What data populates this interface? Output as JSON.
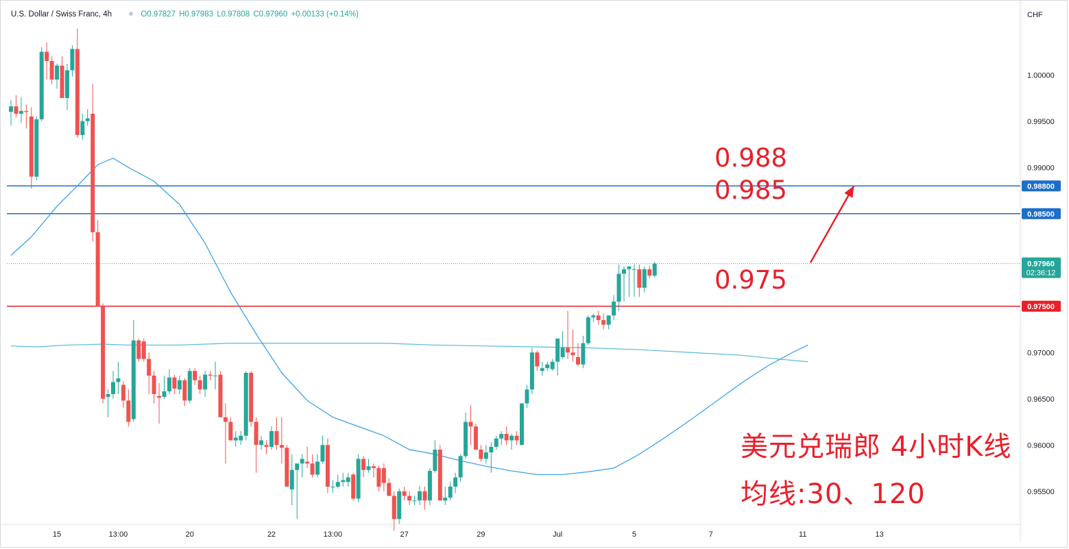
{
  "legend": {
    "symbol": "U.S. Dollar / Swiss Franc, 4h",
    "open": "O0.97827",
    "high": "H0.97983",
    "low": "L0.97808",
    "close": "C0.97960",
    "change": "+0.00133 (+0.14%)"
  },
  "currency": "CHF",
  "annotations": {
    "level_988": "0.988",
    "level_985": "0.985",
    "level_975": "0.975",
    "title_note": "美元兑瑞郎 4小时K线",
    "ma_note": "均线:30、120"
  },
  "colors": {
    "up": "#26a69a",
    "down": "#ef5350",
    "resistance": "#1e6ec8",
    "support": "#e8202a",
    "ma30": "#2e9be8",
    "ma120": "#56b8d6",
    "arrow": "#e8202a"
  },
  "chart_data": {
    "type": "candlestick",
    "title": "U.S. Dollar / Swiss Franc, 4h",
    "ylabel": "CHF",
    "ylim": [
      0.9515,
      1.0055
    ],
    "y_ticks": [
      0.955,
      0.96,
      0.965,
      0.97,
      0.975,
      0.98,
      0.985,
      0.99,
      0.995,
      1.0
    ],
    "y_tick_labels": [
      "0.95500",
      "0.96000",
      "0.96500",
      "0.97000",
      "0.97500",
      "0.98000",
      "0.98500",
      "0.99000",
      "0.99500",
      "1.00000"
    ],
    "x_range": [
      0,
      183
    ],
    "x_ticks": [
      {
        "x": 9,
        "label": "15"
      },
      {
        "x": 21,
        "label": "13:00"
      },
      {
        "x": 35,
        "label": "20"
      },
      {
        "x": 51,
        "label": "22"
      },
      {
        "x": 63,
        "label": "13:00"
      },
      {
        "x": 77,
        "label": "27"
      },
      {
        "x": 92,
        "label": "29"
      },
      {
        "x": 107,
        "label": "Jul"
      },
      {
        "x": 122,
        "label": "5"
      },
      {
        "x": 137,
        "label": "7"
      },
      {
        "x": 155,
        "label": "11"
      },
      {
        "x": 170,
        "label": "13"
      }
    ],
    "candles": [
      [
        0.996,
        0.9973,
        0.9945,
        0.9966
      ],
      [
        0.9966,
        0.9978,
        0.9954,
        0.9958
      ],
      [
        0.9958,
        0.9976,
        0.9948,
        0.9961
      ],
      [
        0.9961,
        0.9968,
        0.9942,
        0.996
      ],
      [
        0.9955,
        0.9965,
        0.9877,
        0.989
      ],
      [
        0.989,
        0.9955,
        0.9886,
        0.9952
      ],
      [
        0.9952,
        1.003,
        0.995,
        1.0025
      ],
      [
        1.0025,
        1.0035,
        0.9995,
        1.0015
      ],
      [
        1.0015,
        1.002,
        0.999,
        0.9995
      ],
      [
        0.9995,
        1.0012,
        0.9985,
        1.001
      ],
      [
        1.001,
        1.002,
        0.9975,
        0.9975
      ],
      [
        0.9975,
        1.0012,
        0.9962,
        1.0005
      ],
      [
        1.0005,
        1.0032,
        0.9998,
        1.0028
      ],
      [
        1.0028,
        1.005,
        0.9932,
        0.9935
      ],
      [
        0.9935,
        0.9958,
        0.993,
        0.995
      ],
      [
        0.995,
        0.9963,
        0.9945,
        0.9953
      ],
      [
        0.9958,
        0.999,
        0.982,
        0.983
      ],
      [
        0.983,
        0.9843,
        0.975,
        0.975
      ],
      [
        0.975,
        0.9753,
        0.9645,
        0.965
      ],
      [
        0.9652,
        0.966,
        0.963,
        0.9655
      ],
      [
        0.9655,
        0.968,
        0.965,
        0.9668
      ],
      [
        0.9668,
        0.969,
        0.9655,
        0.9672
      ],
      [
        0.9665,
        0.9669,
        0.964,
        0.9648
      ],
      [
        0.9648,
        0.966,
        0.962,
        0.9625
      ],
      [
        0.9628,
        0.9735,
        0.9625,
        0.9713
      ],
      [
        0.9713,
        0.9715,
        0.969,
        0.9693
      ],
      [
        0.9712,
        0.9715,
        0.969,
        0.9693
      ],
      [
        0.9693,
        0.97,
        0.9655,
        0.9675
      ],
      [
        0.9675,
        0.968,
        0.9645,
        0.9655
      ],
      [
        0.9653,
        0.9667,
        0.9623,
        0.9651
      ],
      [
        0.9652,
        0.9675,
        0.965,
        0.9658
      ],
      [
        0.9658,
        0.9682,
        0.9655,
        0.9673
      ],
      [
        0.9673,
        0.9676,
        0.9655,
        0.9661
      ],
      [
        0.966,
        0.9675,
        0.9655,
        0.967
      ],
      [
        0.967,
        0.9672,
        0.9642,
        0.9648
      ],
      [
        0.9648,
        0.9683,
        0.9645,
        0.968
      ],
      [
        0.968,
        0.9683,
        0.9665,
        0.967
      ],
      [
        0.967,
        0.9675,
        0.9655,
        0.966
      ],
      [
        0.966,
        0.968,
        0.9652,
        0.9676
      ],
      [
        0.9676,
        0.968,
        0.967,
        0.9675
      ],
      [
        0.9675,
        0.969,
        0.966,
        0.9675
      ],
      [
        0.9676,
        0.968,
        0.963,
        0.963
      ],
      [
        0.963,
        0.9645,
        0.958,
        0.9625
      ],
      [
        0.9625,
        0.963,
        0.9605,
        0.9605
      ],
      [
        0.9605,
        0.9615,
        0.9598,
        0.9608
      ],
      [
        0.9605,
        0.9615,
        0.96,
        0.961
      ],
      [
        0.961,
        0.968,
        0.9605,
        0.9678
      ],
      [
        0.9678,
        0.968,
        0.962,
        0.9625
      ],
      [
        0.9625,
        0.963,
        0.957,
        0.96
      ],
      [
        0.96,
        0.961,
        0.9595,
        0.9605
      ],
      [
        0.96,
        0.9605,
        0.959,
        0.9598
      ],
      [
        0.9598,
        0.962,
        0.9595,
        0.9615
      ],
      [
        0.9615,
        0.963,
        0.9595,
        0.96
      ],
      [
        0.96,
        0.963,
        0.958,
        0.9597
      ],
      [
        0.9597,
        0.96,
        0.9555,
        0.9555
      ],
      [
        0.9552,
        0.959,
        0.9535,
        0.9573
      ],
      [
        0.9573,
        0.9575,
        0.952,
        0.958
      ],
      [
        0.958,
        0.959,
        0.9565,
        0.9585
      ],
      [
        0.9582,
        0.9598,
        0.9575,
        0.958
      ],
      [
        0.958,
        0.959,
        0.9565,
        0.9568
      ],
      [
        0.9568,
        0.959,
        0.9565,
        0.9582
      ],
      [
        0.9582,
        0.961,
        0.958,
        0.96
      ],
      [
        0.96,
        0.9607,
        0.9548,
        0.9555
      ],
      [
        0.9555,
        0.9562,
        0.9548,
        0.9555
      ],
      [
        0.9555,
        0.9568,
        0.9553,
        0.956
      ],
      [
        0.956,
        0.957,
        0.9555,
        0.9562
      ],
      [
        0.956,
        0.957,
        0.9555,
        0.9565
      ],
      [
        0.9568,
        0.957,
        0.954,
        0.9542
      ],
      [
        0.9542,
        0.959,
        0.9538,
        0.9585
      ],
      [
        0.9585,
        0.9588,
        0.9565,
        0.9573
      ],
      [
        0.9573,
        0.9585,
        0.957,
        0.9577
      ],
      [
        0.9577,
        0.958,
        0.9565,
        0.9575
      ],
      [
        0.9575,
        0.9578,
        0.955,
        0.9555
      ],
      [
        0.9575,
        0.958,
        0.955,
        0.9559
      ],
      [
        0.9559,
        0.9564,
        0.9545,
        0.9545
      ],
      [
        0.9545,
        0.955,
        0.9507,
        0.952
      ],
      [
        0.952,
        0.9553,
        0.9515,
        0.955
      ],
      [
        0.955,
        0.9555,
        0.954,
        0.9545
      ],
      [
        0.9545,
        0.955,
        0.9535,
        0.954
      ],
      [
        0.954,
        0.9545,
        0.9535,
        0.954
      ],
      [
        0.954,
        0.9556,
        0.9535,
        0.955
      ],
      [
        0.955,
        0.9555,
        0.953,
        0.954
      ],
      [
        0.954,
        0.9575,
        0.9535,
        0.9572
      ],
      [
        0.9572,
        0.9605,
        0.957,
        0.9595
      ],
      [
        0.9595,
        0.96,
        0.954,
        0.954
      ],
      [
        0.954,
        0.9555,
        0.9535,
        0.9543
      ],
      [
        0.9543,
        0.956,
        0.954,
        0.9555
      ],
      [
        0.9555,
        0.957,
        0.9548,
        0.9565
      ],
      [
        0.9565,
        0.959,
        0.956,
        0.9588
      ],
      [
        0.9588,
        0.9635,
        0.9585,
        0.9625
      ],
      [
        0.9625,
        0.9643,
        0.96,
        0.962
      ],
      [
        0.962,
        0.9623,
        0.9595,
        0.9595
      ],
      [
        0.9595,
        0.96,
        0.9582,
        0.9585
      ],
      [
        0.9585,
        0.96,
        0.958,
        0.9592
      ],
      [
        0.9592,
        0.9603,
        0.957,
        0.9598
      ],
      [
        0.9598,
        0.961,
        0.9595,
        0.9607
      ],
      [
        0.9607,
        0.9615,
        0.96,
        0.9612
      ],
      [
        0.9612,
        0.962,
        0.96,
        0.9605
      ],
      [
        0.9605,
        0.9612,
        0.9595,
        0.961
      ],
      [
        0.961,
        0.9615,
        0.96,
        0.9605
      ],
      [
        0.96,
        0.9645,
        0.96,
        0.9645
      ],
      [
        0.9645,
        0.9665,
        0.964,
        0.966
      ],
      [
        0.966,
        0.9705,
        0.9655,
        0.97
      ],
      [
        0.97,
        0.9702,
        0.968,
        0.9685
      ],
      [
        0.968,
        0.969,
        0.9675,
        0.9683
      ],
      [
        0.9683,
        0.969,
        0.968,
        0.9687
      ],
      [
        0.9682,
        0.9693,
        0.968,
        0.969
      ],
      [
        0.969,
        0.971,
        0.9675,
        0.9715
      ],
      [
        0.9695,
        0.9723,
        0.9693,
        0.9705
      ],
      [
        0.9705,
        0.9745,
        0.9693,
        0.97
      ],
      [
        0.97,
        0.9725,
        0.969,
        0.9697
      ],
      [
        0.9695,
        0.971,
        0.9685,
        0.9687
      ],
      [
        0.9687,
        0.9718,
        0.9683,
        0.971
      ],
      [
        0.971,
        0.974,
        0.9708,
        0.9738
      ],
      [
        0.9738,
        0.9742,
        0.9733,
        0.974
      ],
      [
        0.974,
        0.9745,
        0.973,
        0.9735
      ],
      [
        0.9735,
        0.9742,
        0.9725,
        0.973
      ],
      [
        0.973,
        0.974,
        0.9725,
        0.974
      ],
      [
        0.974,
        0.9762,
        0.9735,
        0.9755
      ],
      [
        0.9755,
        0.9795,
        0.9745,
        0.9785
      ],
      [
        0.9785,
        0.9793,
        0.9755,
        0.979
      ],
      [
        0.979,
        0.979,
        0.976,
        0.9793
      ],
      [
        0.979,
        0.9795,
        0.976,
        0.979
      ],
      [
        0.979,
        0.9795,
        0.976,
        0.977
      ],
      [
        0.977,
        0.9793,
        0.9765,
        0.979
      ],
      [
        0.979,
        0.9794,
        0.978,
        0.9783
      ],
      [
        0.9783,
        0.9798,
        0.9781,
        0.9796
      ]
    ],
    "ma30": [
      [
        0,
        0.9805
      ],
      [
        4,
        0.9825
      ],
      [
        9,
        0.9858
      ],
      [
        13,
        0.988
      ],
      [
        17,
        0.9903
      ],
      [
        20,
        0.991
      ],
      [
        23,
        0.99
      ],
      [
        28,
        0.9885
      ],
      [
        33,
        0.986
      ],
      [
        38,
        0.9818
      ],
      [
        43,
        0.9765
      ],
      [
        48,
        0.972
      ],
      [
        53,
        0.9678
      ],
      [
        58,
        0.9648
      ],
      [
        63,
        0.963
      ],
      [
        68,
        0.962
      ],
      [
        73,
        0.961
      ],
      [
        78,
        0.9595
      ],
      [
        83,
        0.959
      ],
      [
        88,
        0.9583
      ],
      [
        93,
        0.9577
      ],
      [
        98,
        0.9572
      ],
      [
        103,
        0.9568
      ],
      [
        108,
        0.9568
      ],
      [
        113,
        0.9571
      ],
      [
        118,
        0.9575
      ],
      [
        123,
        0.959
      ],
      [
        128,
        0.9608
      ],
      [
        133,
        0.9627
      ],
      [
        138,
        0.9647
      ],
      [
        143,
        0.9667
      ],
      [
        148,
        0.9685
      ],
      [
        153,
        0.97
      ],
      [
        156,
        0.9708
      ]
    ],
    "ma120": [
      [
        0,
        0.9707
      ],
      [
        5,
        0.9706
      ],
      [
        11,
        0.9708
      ],
      [
        18,
        0.9709
      ],
      [
        23,
        0.9708
      ],
      [
        33,
        0.9708
      ],
      [
        43,
        0.971
      ],
      [
        53,
        0.971
      ],
      [
        63,
        0.971
      ],
      [
        73,
        0.971
      ],
      [
        83,
        0.9708
      ],
      [
        93,
        0.9707
      ],
      [
        103,
        0.9706
      ],
      [
        113,
        0.9705
      ],
      [
        123,
        0.9703
      ],
      [
        133,
        0.97
      ],
      [
        143,
        0.9697
      ],
      [
        150,
        0.9693
      ],
      [
        156,
        0.969
      ]
    ],
    "hlines": [
      {
        "value": 0.988,
        "label": "0.98800",
        "kind": "resistance"
      },
      {
        "value": 0.985,
        "label": "0.98500",
        "kind": "resistance"
      },
      {
        "value": 0.975,
        "label": "0.97500",
        "kind": "support"
      }
    ],
    "last_price": {
      "value": 0.9796,
      "label": "0.97960",
      "countdown": "02:36:12"
    },
    "arrow": {
      "from": [
        156.5,
        0.9797
      ],
      "to": [
        165,
        0.988
      ]
    },
    "grid": false
  }
}
